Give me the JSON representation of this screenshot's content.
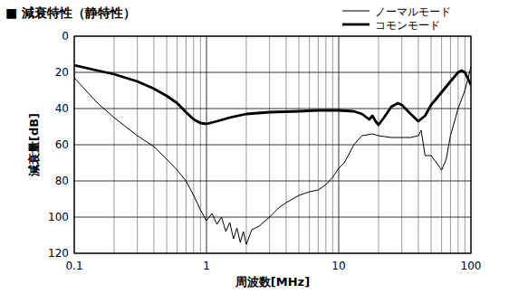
{
  "chart_data": {
    "type": "line",
    "title": "■ 減衰特性（静特性）",
    "x_label": "周波数[MHz]",
    "y_label": "減衰量[dB]",
    "log": "x",
    "grid": true,
    "legend": "upper right",
    "xlim": [
      0.1,
      100
    ],
    "xticks": [
      0.1,
      1,
      10,
      100
    ],
    "ylim": [
      120,
      0
    ],
    "yticks": [
      0,
      20,
      40,
      60,
      80,
      100,
      120
    ],
    "series": [
      {
        "name": "ノーマルモード",
        "color": "#000000",
        "line_style": "thin",
        "x": [
          0.1,
          0.15,
          0.2,
          0.3,
          0.4,
          0.5,
          0.6,
          0.7,
          0.8,
          0.9,
          1.0,
          1.1,
          1.2,
          1.3,
          1.4,
          1.5,
          1.6,
          1.7,
          1.8,
          1.9,
          2.0,
          2.2,
          2.5,
          3.0,
          3.5,
          4,
          5,
          6,
          7,
          8,
          9,
          10,
          11,
          12,
          13,
          15,
          18,
          20,
          25,
          30,
          35,
          40,
          42,
          45,
          50,
          55,
          60,
          65,
          70,
          80,
          90,
          100
        ],
        "values": [
          23,
          37,
          45,
          55,
          61,
          68,
          74,
          80,
          88,
          96,
          102,
          98,
          104,
          100,
          108,
          103,
          112,
          106,
          114,
          108,
          115,
          107,
          105,
          100,
          95,
          92,
          88,
          86,
          85,
          82,
          78,
          73,
          70,
          65,
          60,
          55,
          54,
          55,
          56,
          56,
          56,
          55,
          52,
          66,
          66,
          70,
          74,
          68,
          55,
          40,
          30,
          17
        ]
      },
      {
        "name": "コモンモード",
        "color": "#000000",
        "line_style": "thick",
        "x": [
          0.1,
          0.15,
          0.2,
          0.3,
          0.4,
          0.5,
          0.6,
          0.7,
          0.8,
          0.9,
          1.0,
          1.2,
          1.5,
          2,
          3,
          5,
          7,
          10,
          13,
          15,
          17,
          18,
          19,
          20,
          22,
          25,
          28,
          30,
          35,
          40,
          45,
          50,
          60,
          70,
          80,
          85,
          90,
          100
        ],
        "values": [
          16,
          19,
          21,
          25,
          29,
          33,
          37,
          42,
          46,
          48,
          48.5,
          47,
          45,
          43,
          42,
          41.5,
          41,
          41,
          41.5,
          43,
          46,
          44,
          47,
          49,
          45,
          39,
          37,
          38,
          43,
          47,
          44,
          38,
          31,
          25,
          20,
          19,
          20,
          27
        ]
      }
    ]
  }
}
